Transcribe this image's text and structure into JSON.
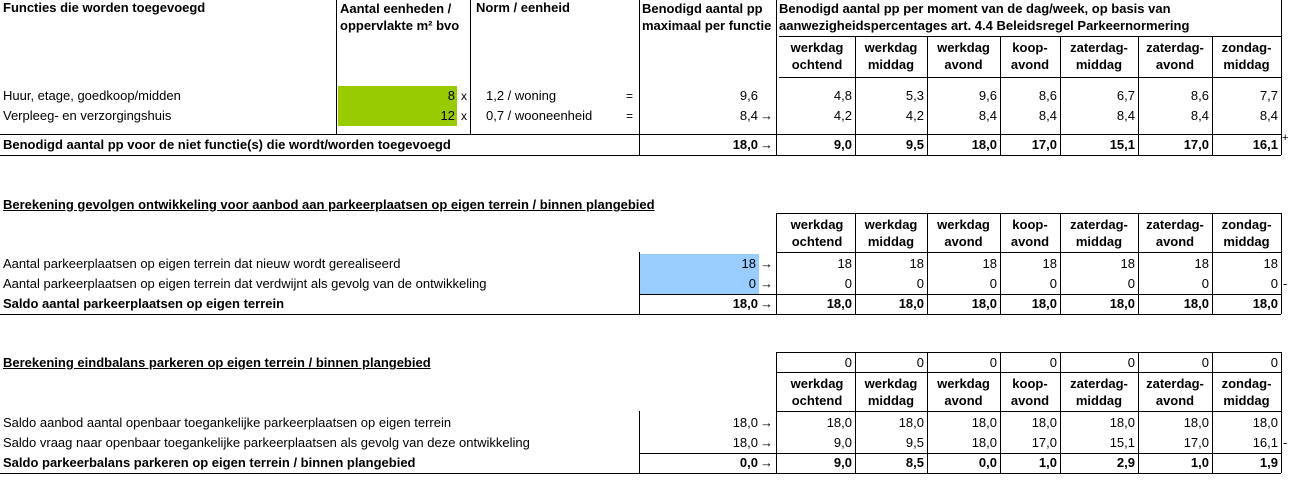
{
  "section1": {
    "headers": {
      "functies": "Functies die worden toegevoegd",
      "aantal": "Aantal eenheden / oppervlakte m² bvo",
      "norm": "Norm / eenheid",
      "benodigd_max": "Benodigd aantal pp maximaal per functie",
      "benodigd_moment": "Benodigd aantal pp per moment van de dag/week, op basis van aanwezigheidspercentages art. 4.4 Beleidsregel Parkeernormering"
    },
    "periods": [
      "werkdag ochtend",
      "werkdag middag",
      "werkdag avond",
      "koop- avond",
      "zaterdag- middag",
      "zaterdag- avond",
      "zondag- middag"
    ],
    "rows": [
      {
        "name": "Huur, etage, goedkoop/midden",
        "aantal": "8",
        "x": "x",
        "norm": "1,2 / woning",
        "eq": "=",
        "max": "9,6",
        "values": [
          "4,8",
          "5,3",
          "9,6",
          "8,6",
          "6,7",
          "8,6",
          "7,7"
        ]
      },
      {
        "name": "Verpleeg- en verzorgingshuis",
        "aantal": "12",
        "x": "x",
        "norm": "0,7 / wooneenheid",
        "eq": "=",
        "max": "8,4",
        "values": [
          "4,2",
          "4,2",
          "8,4",
          "8,4",
          "8,4",
          "8,4",
          "8,4"
        ]
      }
    ],
    "total": {
      "label": "Benodigd aantal pp voor de niet functie(s) die wordt/worden toegevoegd",
      "max": "18,0",
      "values": [
        "9,0",
        "9,5",
        "18,0",
        "17,0",
        "15,1",
        "17,0",
        "16,1"
      ]
    }
  },
  "section2": {
    "title": "Berekening gevolgen ontwikkeling voor aanbod aan parkeerplaatsen op eigen terrein / binnen plangebied",
    "periods": [
      "werkdag ochtend",
      "werkdag middag",
      "werkdag avond",
      "koop- avond",
      "zaterdag- middag",
      "zaterdag- avond",
      "zondag- middag"
    ],
    "rows": [
      {
        "name": "Aantal parkeerplaatsen op eigen terrein dat nieuw wordt gerealiseerd",
        "input": "18",
        "values": [
          "18",
          "18",
          "18",
          "18",
          "18",
          "18",
          "18"
        ]
      },
      {
        "name": "Aantal parkeerplaatsen op eigen terrein dat verdwijnt als gevolg van de ontwikkeling",
        "input": "0",
        "values": [
          "0",
          "0",
          "0",
          "0",
          "0",
          "0",
          "0"
        ]
      }
    ],
    "total": {
      "label": "Saldo aantal parkeerplaatsen op eigen terrein",
      "value": "18,0",
      "values": [
        "18,0",
        "18,0",
        "18,0",
        "18,0",
        "18,0",
        "18,0",
        "18,0"
      ]
    }
  },
  "section3": {
    "title": "Berekening eindbalans parkeren op eigen terrein / binnen plangebied",
    "zero_row": [
      "0",
      "0",
      "0",
      "0",
      "0",
      "0",
      "0"
    ],
    "periods": [
      "werkdag ochtend",
      "werkdag middag",
      "werkdag avond",
      "koop- avond",
      "zaterdag- middag",
      "zaterdag- avond",
      "zondag- middag"
    ],
    "rows": [
      {
        "name": "Saldo aanbod aantal openbaar toegankelijke parkeerplaatsen op eigen terrein",
        "value": "18,0",
        "values": [
          "18,0",
          "18,0",
          "18,0",
          "18,0",
          "18,0",
          "18,0",
          "18,0"
        ]
      },
      {
        "name": "Saldo vraag naar openbaar toegankelijke parkeerplaatsen als gevolg van deze ontwikkeling",
        "value": "18,0",
        "values": [
          "9,0",
          "9,5",
          "18,0",
          "17,0",
          "15,1",
          "17,0",
          "16,1"
        ]
      }
    ],
    "total": {
      "label": "Saldo parkeerbalans parkeren op eigen terrein / binnen plangebied",
      "value": "0,0",
      "values": [
        "9,0",
        "8,5",
        "0,0",
        "1,0",
        "2,9",
        "1,0",
        "1,9"
      ]
    }
  },
  "symbols": {
    "arrow": "→",
    "plus": "+",
    "dash": "-"
  }
}
